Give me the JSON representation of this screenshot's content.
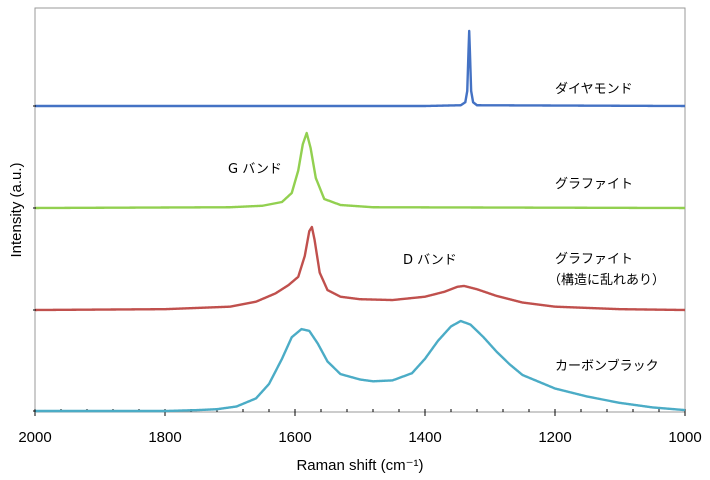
{
  "chart_data": {
    "type": "line",
    "xlabel": "Raman shift (cm⁻¹)",
    "ylabel": "Intensity (a.u.)",
    "xlim": [
      2000,
      1000
    ],
    "x_reversed": true,
    "xticks": [
      2000,
      1800,
      1600,
      1400,
      1200,
      1000
    ],
    "grid": false,
    "series": [
      {
        "name": "ダイヤモンド",
        "color": "#4472C4",
        "points": [
          [
            2000,
            0
          ],
          [
            1400,
            0
          ],
          [
            1345,
            0.01
          ],
          [
            1338,
            0.05
          ],
          [
            1335,
            0.2
          ],
          [
            1333,
            0.75
          ],
          [
            1332,
            1.0
          ],
          [
            1331,
            0.75
          ],
          [
            1329,
            0.2
          ],
          [
            1326,
            0.05
          ],
          [
            1320,
            0.01
          ],
          [
            1000,
            0
          ]
        ]
      },
      {
        "name": "グラファイト",
        "color": "#92D050",
        "points": [
          [
            2000,
            0
          ],
          [
            1700,
            0.01
          ],
          [
            1650,
            0.03
          ],
          [
            1620,
            0.08
          ],
          [
            1605,
            0.2
          ],
          [
            1595,
            0.5
          ],
          [
            1588,
            0.85
          ],
          [
            1582,
            1.0
          ],
          [
            1576,
            0.8
          ],
          [
            1568,
            0.4
          ],
          [
            1555,
            0.12
          ],
          [
            1530,
            0.04
          ],
          [
            1480,
            0.01
          ],
          [
            1000,
            0
          ]
        ]
      },
      {
        "name": "グラファイト（構造に乱れあり）",
        "color": "#C0504D",
        "points": [
          [
            2000,
            0
          ],
          [
            1800,
            0.01
          ],
          [
            1700,
            0.04
          ],
          [
            1660,
            0.1
          ],
          [
            1630,
            0.2
          ],
          [
            1610,
            0.3
          ],
          [
            1595,
            0.4
          ],
          [
            1585,
            0.65
          ],
          [
            1578,
            0.95
          ],
          [
            1574,
            1.0
          ],
          [
            1570,
            0.85
          ],
          [
            1562,
            0.45
          ],
          [
            1550,
            0.24
          ],
          [
            1530,
            0.16
          ],
          [
            1500,
            0.13
          ],
          [
            1450,
            0.12
          ],
          [
            1400,
            0.16
          ],
          [
            1370,
            0.22
          ],
          [
            1350,
            0.28
          ],
          [
            1340,
            0.29
          ],
          [
            1320,
            0.25
          ],
          [
            1290,
            0.17
          ],
          [
            1250,
            0.09
          ],
          [
            1200,
            0.04
          ],
          [
            1100,
            0.01
          ],
          [
            1000,
            0
          ]
        ]
      },
      {
        "name": "カーボンブラック",
        "color": "#4BACC6",
        "points": [
          [
            2000,
            0
          ],
          [
            1800,
            0
          ],
          [
            1750,
            0.01
          ],
          [
            1720,
            0.02
          ],
          [
            1690,
            0.05
          ],
          [
            1660,
            0.14
          ],
          [
            1640,
            0.3
          ],
          [
            1620,
            0.58
          ],
          [
            1605,
            0.82
          ],
          [
            1590,
            0.91
          ],
          [
            1578,
            0.89
          ],
          [
            1565,
            0.75
          ],
          [
            1550,
            0.55
          ],
          [
            1530,
            0.41
          ],
          [
            1500,
            0.35
          ],
          [
            1480,
            0.33
          ],
          [
            1450,
            0.34
          ],
          [
            1420,
            0.42
          ],
          [
            1400,
            0.58
          ],
          [
            1380,
            0.78
          ],
          [
            1360,
            0.94
          ],
          [
            1345,
            1.0
          ],
          [
            1330,
            0.96
          ],
          [
            1310,
            0.82
          ],
          [
            1290,
            0.66
          ],
          [
            1270,
            0.52
          ],
          [
            1250,
            0.4
          ],
          [
            1200,
            0.25
          ],
          [
            1150,
            0.16
          ],
          [
            1100,
            0.09
          ],
          [
            1050,
            0.04
          ],
          [
            1000,
            0.01
          ]
        ]
      }
    ],
    "annotations": [
      {
        "text": "G バンド"
      },
      {
        "text": "D バンド"
      }
    ]
  }
}
